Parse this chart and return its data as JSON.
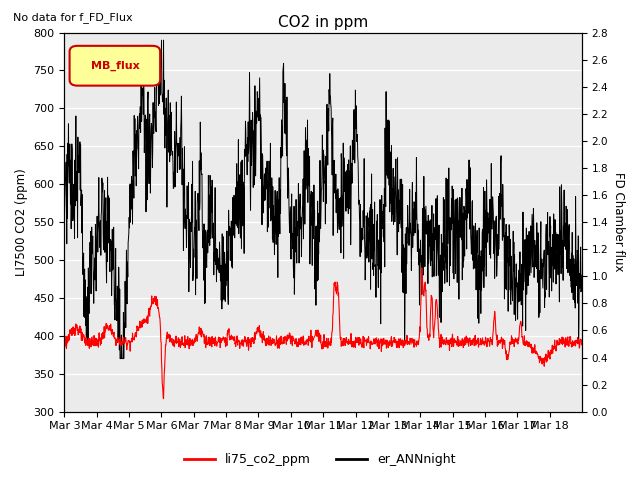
{
  "title": "CO2 in ppm",
  "subtitle": "No data for f_FD_Flux",
  "ylabel_left": "LI7500 CO2 (ppm)",
  "ylabel_right": "FD Chamber flux",
  "ylim_left": [
    300,
    800
  ],
  "ylim_right": [
    0.0,
    2.8
  ],
  "legend_labels": [
    "li75_co2_ppm",
    "er_ANNnight"
  ],
  "legend_colors": [
    "red",
    "black"
  ],
  "mb_flux_label": "MB_flux",
  "x_tick_labels": [
    "Mar 3",
    "Mar 4",
    "Mar 5",
    "Mar 6",
    "Mar 7",
    "Mar 8",
    "Mar 9",
    "Mar 10",
    "Mar 11",
    "Mar 12",
    "Mar 13",
    "Mar 14",
    "Mar 15",
    "Mar 16",
    "Mar 17",
    "Mar 18"
  ],
  "background_color": "#e8e8e8",
  "plot_background": "#ebebeb"
}
